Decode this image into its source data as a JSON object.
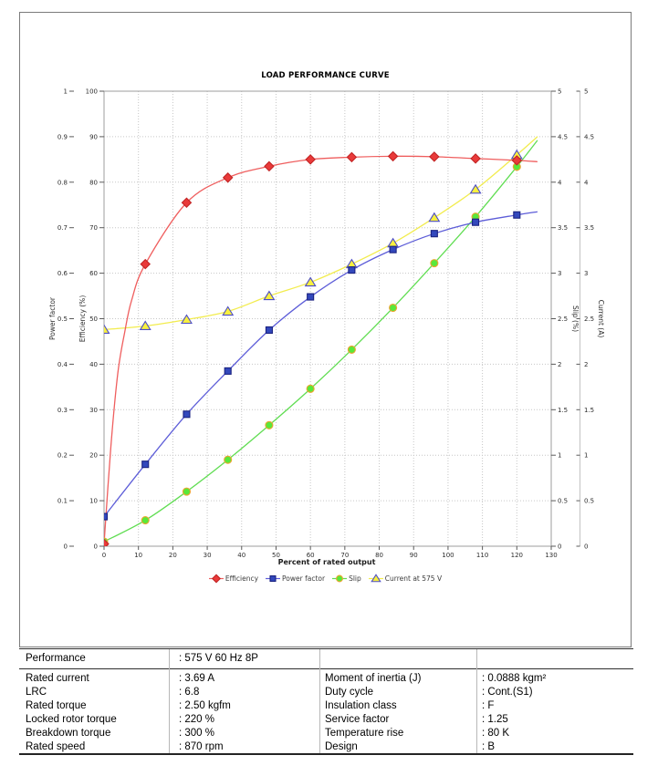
{
  "chart": {
    "title": "LOAD PERFORMANCE CURVE",
    "x_axis": {
      "label": "Percent of rated output",
      "min": 0,
      "max": 130,
      "tick_step": 10
    },
    "y_axes": [
      {
        "id": "pf",
        "label": "Power factor",
        "min": 0,
        "max": 1,
        "tick_step": 0.1,
        "side": "left-outer"
      },
      {
        "id": "eff",
        "label": "Efficiency (%)",
        "min": 0,
        "max": 100,
        "tick_step": 10,
        "side": "left-inner"
      },
      {
        "id": "slip",
        "label": "Slip (%)",
        "min": 0,
        "max": 5,
        "tick_step": 0.5,
        "side": "right-inner"
      },
      {
        "id": "cur",
        "label": "Current (A)",
        "min": 0,
        "max": 5,
        "tick_step": 0.5,
        "side": "right-outer"
      }
    ],
    "colors": {
      "grid": "#c6c6c6",
      "plot_border": "#9e9e9e",
      "tick": "#5a5a5a",
      "tick_label": "#2c2c2c",
      "axis_title": "#2c2c2c",
      "current_axis_line": "#c2c2c2"
    }
  },
  "chart_data": {
    "type": "line",
    "title": "LOAD PERFORMANCE CURVE",
    "xlabel": "Percent of rated output",
    "xlim": [
      0,
      130
    ],
    "grid": "dotted",
    "legend_position": "bottom-center",
    "x": [
      0,
      12,
      24,
      36,
      48,
      60,
      72,
      84,
      96,
      108,
      120
    ],
    "series": [
      {
        "name": "Efficiency",
        "axis": "eff",
        "axis_max": 100,
        "line_color": "#ef5e5e",
        "marker": {
          "shape": "diamond",
          "fill": "#e93a3a",
          "stroke": "#c22424",
          "size": 5
        },
        "values": [
          0.5,
          62,
          75.5,
          81,
          83.5,
          85,
          85.5,
          85.7,
          85.6,
          85.2,
          84.8
        ],
        "fit_x": [
          0,
          2,
          4,
          6,
          8,
          12,
          24,
          36,
          48,
          60,
          72,
          84,
          96,
          108,
          120,
          126
        ],
        "fit_y": [
          0.5,
          22,
          38,
          47,
          54,
          62,
          75.5,
          81,
          83.5,
          85,
          85.5,
          85.7,
          85.6,
          85.2,
          84.8,
          84.5
        ]
      },
      {
        "name": "Power factor",
        "axis": "pf",
        "axis_max": 1,
        "line_color": "#5d5dd8",
        "marker": {
          "shape": "square",
          "fill": "#3348bc",
          "stroke": "#1a2280",
          "size": 3.5
        },
        "values": [
          0.065,
          0.18,
          0.29,
          0.385,
          0.475,
          0.548,
          0.607,
          0.652,
          0.687,
          0.712,
          0.728
        ],
        "fit_x": [
          0,
          12,
          24,
          36,
          48,
          60,
          72,
          84,
          96,
          108,
          120,
          126
        ],
        "fit_y": [
          0.065,
          0.18,
          0.29,
          0.385,
          0.475,
          0.548,
          0.607,
          0.652,
          0.687,
          0.712,
          0.728,
          0.735
        ]
      },
      {
        "name": "Slip",
        "axis": "slip",
        "axis_max": 5,
        "line_color": "#60dd52",
        "marker": {
          "shape": "circle",
          "fill": "#58e83a",
          "stroke": "#eca52f",
          "size": 4
        },
        "values": [
          0.05,
          0.285,
          0.6,
          0.95,
          1.33,
          1.73,
          2.16,
          2.62,
          3.11,
          3.62,
          4.17
        ],
        "fit_x": [
          0,
          12,
          24,
          36,
          48,
          60,
          72,
          84,
          96,
          108,
          120,
          126
        ],
        "fit_y": [
          0.05,
          0.285,
          0.6,
          0.95,
          1.33,
          1.73,
          2.16,
          2.62,
          3.11,
          3.62,
          4.17,
          4.46
        ]
      },
      {
        "name": "Current at 575 V",
        "axis": "cur",
        "axis_max": 5,
        "line_color": "#f2ec4e",
        "marker": {
          "shape": "triangle",
          "fill": "#f8f03e",
          "stroke": "#4d4dc6",
          "size": 5
        },
        "values": [
          2.38,
          2.42,
          2.49,
          2.58,
          2.75,
          2.9,
          3.1,
          3.33,
          3.61,
          3.92,
          4.3
        ],
        "fit_x": [
          0,
          12,
          24,
          36,
          48,
          60,
          72,
          84,
          96,
          108,
          120,
          126
        ],
        "fit_y": [
          2.38,
          2.42,
          2.49,
          2.58,
          2.75,
          2.9,
          3.1,
          3.33,
          3.61,
          3.92,
          4.3,
          4.5
        ]
      }
    ]
  },
  "table": {
    "performance": {
      "label": "Performance",
      "value": ": 575 V 60 Hz 8P"
    },
    "rows": [
      {
        "l1": "Rated current",
        "v1": ": 3.69 A",
        "l2": "Moment of inertia (J)",
        "v2": ": 0.0888 kgm²"
      },
      {
        "l1": "LRC",
        "v1": ": 6.8",
        "l2": "Duty cycle",
        "v2": ": Cont.(S1)"
      },
      {
        "l1": "Rated torque",
        "v1": ": 2.50 kgfm",
        "l2": "Insulation class",
        "v2": ": F"
      },
      {
        "l1": "Locked rotor torque",
        "v1": ": 220 %",
        "l2": "Service factor",
        "v2": ": 1.25"
      },
      {
        "l1": "Breakdown torque",
        "v1": ": 300 %",
        "l2": "Temperature rise",
        "v2": ": 80 K"
      },
      {
        "l1": "Rated speed",
        "v1": ": 870 rpm",
        "l2": "Design",
        "v2": ": B"
      }
    ]
  }
}
